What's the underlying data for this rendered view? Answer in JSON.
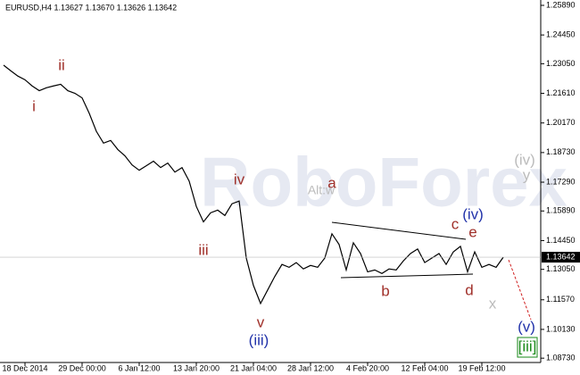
{
  "chart_data": {
    "type": "line",
    "title": "EURUSD,H4  1.13627 1.13670 1.13626 1.13642",
    "watermark": "RoboForex",
    "categories": [
      null,
      null,
      null,
      "18 Dec 2014",
      null,
      null,
      null,
      null,
      null,
      null,
      null,
      "29 Dec 00:00",
      null,
      null,
      null,
      null,
      null,
      null,
      null,
      "6 Jan 12:00",
      null,
      null,
      null,
      null,
      null,
      null,
      null,
      "13 Jan 20:00",
      null,
      null,
      null,
      null,
      null,
      null,
      null,
      "21 Jan 04:00",
      null,
      null,
      null,
      null,
      null,
      null,
      null,
      "28 Jan 12:00",
      null,
      null,
      null,
      null,
      null,
      null,
      null,
      "4 Feb 20:00",
      null,
      null,
      null,
      null,
      null,
      null,
      null,
      "12 Feb 04:00",
      null,
      null,
      null,
      null,
      null,
      null,
      null,
      "19 Feb 12:00",
      null,
      null,
      null
    ],
    "values": [
      1.2298,
      1.2271,
      1.2245,
      1.2227,
      1.2197,
      1.2174,
      1.2188,
      1.2197,
      1.2205,
      1.2174,
      1.2161,
      1.2139,
      1.2064,
      1.1976,
      1.1919,
      1.1932,
      1.1888,
      1.1857,
      1.1813,
      1.1787,
      1.1809,
      1.1831,
      1.18,
      1.1822,
      1.1778,
      1.18,
      1.1734,
      1.1611,
      1.1536,
      1.158,
      1.1593,
      1.1567,
      1.1624,
      1.1637,
      1.136,
      1.1227,
      1.1139,
      1.1205,
      1.1271,
      1.1329,
      1.1315,
      1.1338,
      1.1307,
      1.1324,
      1.1315,
      1.136,
      1.1478,
      1.1426,
      1.1302,
      1.1434,
      1.1382,
      1.1293,
      1.1302,
      1.1285,
      1.1307,
      1.1302,
      1.1346,
      1.1382,
      1.1404,
      1.1338,
      1.136,
      1.1382,
      1.1329,
      1.139,
      1.1417,
      1.1293,
      1.139,
      1.1315,
      1.1329,
      1.1315,
      1.1364
    ],
    "color": "#000000",
    "ylim": [
      1.0852,
      1.2615
    ],
    "yticks": [
      {
        "value": 1.2589,
        "label": "1.25890"
      },
      {
        "value": 1.2445,
        "label": "1.24450"
      },
      {
        "value": 1.2305,
        "label": "1.23050"
      },
      {
        "value": 1.2161,
        "label": "1.21610"
      },
      {
        "value": 1.2017,
        "label": "1.20170"
      },
      {
        "value": 1.1873,
        "label": "1.18730"
      },
      {
        "value": 1.1729,
        "label": "1.17290"
      },
      {
        "value": 1.1589,
        "label": "1.15890"
      },
      {
        "value": 1.1445,
        "label": "1.14450"
      },
      {
        "value": 1.1305,
        "label": "1.13050"
      },
      {
        "value": 1.1157,
        "label": "1.11570"
      },
      {
        "value": 1.1013,
        "label": "1.10130"
      },
      {
        "value": 1.0873,
        "label": "1.08730"
      }
    ],
    "current_price": {
      "value": 1.13642,
      "label": "1.13642"
    },
    "annotations": [
      {
        "text": "i",
        "color": "#a0302a"
      },
      {
        "text": "ii",
        "color": "#a0302a"
      },
      {
        "text": "iii",
        "color": "#a0302a"
      },
      {
        "text": "iv",
        "color": "#a0302a"
      },
      {
        "text": "v",
        "color": "#a0302a"
      },
      {
        "text": "(iii)",
        "color": "#2233aa"
      },
      {
        "text": "a",
        "color": "#a0302a"
      },
      {
        "text": "b",
        "color": "#a0302a"
      },
      {
        "text": "c",
        "color": "#a0302a"
      },
      {
        "text": "d",
        "color": "#a0302a"
      },
      {
        "text": "e",
        "color": "#a0302a"
      },
      {
        "text": "(iv)",
        "color": "#2233aa"
      },
      {
        "text": "(v)",
        "color": "#2233aa"
      },
      {
        "text": "[iii]",
        "color": "#1a8a1a"
      },
      {
        "text": "(iv)",
        "color": "#bbbbbb"
      },
      {
        "text": "y",
        "color": "#bbbbbb"
      },
      {
        "text": "x",
        "color": "#bbbbbb"
      },
      {
        "text": "Alt:w",
        "color": "#bbbbbb"
      }
    ]
  }
}
